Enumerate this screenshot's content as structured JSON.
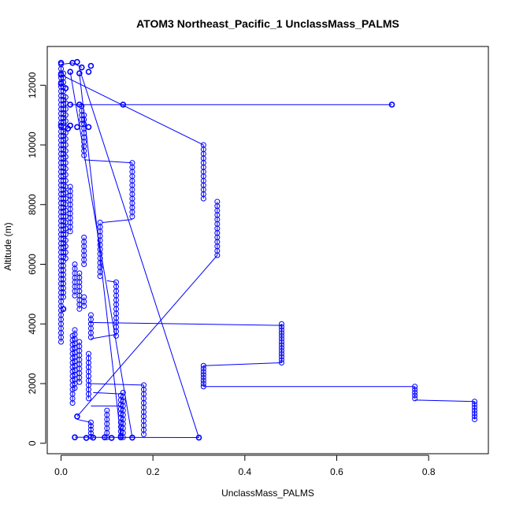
{
  "chart_data": {
    "type": "line",
    "title": "ATOM3 Northeast_Pacific_1 UnclassMass_PALMS",
    "xlabel": "UnclassMass_PALMS",
    "ylabel": "Altitude (m)",
    "xlim": [
      -0.03,
      0.93
    ],
    "ylim": [
      -350,
      13300
    ],
    "x_ticks": [
      0.0,
      0.2,
      0.4,
      0.6,
      0.8
    ],
    "x_tick_labels": [
      "0.0",
      "0.2",
      "0.4",
      "0.6",
      "0.8"
    ],
    "y_ticks": [
      0,
      2000,
      4000,
      6000,
      8000,
      10000,
      12000
    ],
    "y_tick_labels": [
      "0",
      "2000",
      "4000",
      "6000",
      "8000",
      "10000",
      "12000"
    ],
    "grid": false,
    "legend": "none",
    "series_color": "#0000ff",
    "marker": "open-circle",
    "profile_segments": [
      {
        "x": 0.0,
        "y_from": 12700,
        "y_to": 3300,
        "step": 150
      },
      {
        "x": 0.005,
        "y_from": 12400,
        "y_to": 4800,
        "step": 150
      },
      {
        "x": 0.01,
        "y_from": 11600,
        "y_to": 6200,
        "step": 200
      },
      {
        "x": 0.02,
        "y_from": 8600,
        "y_to": 7100,
        "step": 150
      },
      {
        "x": 0.03,
        "y_from": 6000,
        "y_to": 4900,
        "step": 150
      },
      {
        "x": 0.045,
        "y_from": 11300,
        "y_to": 10600,
        "step": 150
      },
      {
        "x": 0.05,
        "y_from": 11000,
        "y_to": 9600,
        "step": 150
      },
      {
        "x": 0.05,
        "y_from": 6900,
        "y_to": 5900,
        "step": 150
      },
      {
        "x": 0.04,
        "y_from": 5700,
        "y_to": 4400,
        "step": 150
      },
      {
        "x": 0.05,
        "y_from": 4900,
        "y_to": 4600,
        "step": 150
      },
      {
        "x": 0.03,
        "y_from": 3800,
        "y_to": 1800,
        "step": 150
      },
      {
        "x": 0.04,
        "y_from": 3400,
        "y_to": 2000,
        "step": 150
      },
      {
        "x": 0.025,
        "y_from": 3600,
        "y_to": 1300,
        "step": 150
      },
      {
        "x": 0.06,
        "y_from": 3000,
        "y_to": 1500,
        "step": 150
      },
      {
        "x": 0.065,
        "y_from": 4300,
        "y_to": 3500,
        "step": 150
      },
      {
        "x": 0.085,
        "y_from": 7400,
        "y_to": 5600,
        "step": 150
      },
      {
        "x": 0.12,
        "y_from": 5400,
        "y_to": 3600,
        "step": 150
      },
      {
        "x": 0.155,
        "y_from": 9400,
        "y_to": 7500,
        "step": 150
      },
      {
        "x": 0.31,
        "y_from": 10000,
        "y_to": 8200,
        "step": 150
      },
      {
        "x": 0.34,
        "y_from": 8100,
        "y_to": 6300,
        "step": 150
      },
      {
        "x": 0.48,
        "y_from": 4000,
        "y_to": 2700,
        "step": 100
      },
      {
        "x": 0.31,
        "y_from": 2600,
        "y_to": 1900,
        "step": 100
      },
      {
        "x": 0.77,
        "y_from": 1900,
        "y_to": 1450,
        "step": 100
      },
      {
        "x": 0.9,
        "y_from": 1400,
        "y_to": 750,
        "step": 100
      },
      {
        "x": 0.13,
        "y_from": 1600,
        "y_to": 200,
        "step": 150
      },
      {
        "x": 0.135,
        "y_from": 1700,
        "y_to": 200,
        "step": 150
      },
      {
        "x": 0.18,
        "y_from": 1950,
        "y_to": 200,
        "step": 150
      },
      {
        "x": 0.1,
        "y_from": 1100,
        "y_to": 200,
        "step": 150
      },
      {
        "x": 0.065,
        "y_from": 700,
        "y_to": 200,
        "step": 120
      }
    ],
    "points": [
      {
        "x": 0.0,
        "y": 12750
      },
      {
        "x": 0.025,
        "y": 12750
      },
      {
        "x": 0.035,
        "y": 12780
      },
      {
        "x": 0.045,
        "y": 12600
      },
      {
        "x": 0.065,
        "y": 12650
      },
      {
        "x": 0.06,
        "y": 12450
      },
      {
        "x": 0.04,
        "y": 12400
      },
      {
        "x": 0.02,
        "y": 12450
      },
      {
        "x": 0.0,
        "y": 12350
      },
      {
        "x": 0.02,
        "y": 11350
      },
      {
        "x": 0.04,
        "y": 11350
      },
      {
        "x": 0.135,
        "y": 11350
      },
      {
        "x": 0.72,
        "y": 11350
      },
      {
        "x": 0.0,
        "y": 10650
      },
      {
        "x": 0.02,
        "y": 10650
      },
      {
        "x": 0.035,
        "y": 10600
      },
      {
        "x": 0.06,
        "y": 10600
      },
      {
        "x": 0.015,
        "y": 10550
      },
      {
        "x": 0.0,
        "y": 12050
      },
      {
        "x": 0.005,
        "y": 4500
      },
      {
        "x": 0.01,
        "y": 11900
      },
      {
        "x": 0.03,
        "y": 200
      },
      {
        "x": 0.055,
        "y": 180
      },
      {
        "x": 0.07,
        "y": 190
      },
      {
        "x": 0.095,
        "y": 200
      },
      {
        "x": 0.11,
        "y": 180
      },
      {
        "x": 0.13,
        "y": 200
      },
      {
        "x": 0.155,
        "y": 190
      },
      {
        "x": 0.3,
        "y": 190
      },
      {
        "x": 0.035,
        "y": 900
      }
    ],
    "connectors": [
      [
        0.0,
        12700,
        0.025,
        12750
      ],
      [
        0.025,
        12750,
        0.045,
        12600
      ],
      [
        0.0,
        12350,
        0.31,
        10000
      ],
      [
        0.02,
        11350,
        0.72,
        11350
      ],
      [
        0.05,
        9500,
        0.155,
        9400
      ],
      [
        0.09,
        7400,
        0.155,
        7500
      ],
      [
        0.1,
        5450,
        0.12,
        5400
      ],
      [
        0.06,
        4050,
        0.48,
        3950
      ],
      [
        0.065,
        3500,
        0.12,
        3650
      ],
      [
        0.31,
        2600,
        0.48,
        2700
      ],
      [
        0.31,
        1900,
        0.77,
        1900
      ],
      [
        0.77,
        1450,
        0.9,
        1400
      ],
      [
        0.06,
        2000,
        0.18,
        1950
      ],
      [
        0.07,
        1700,
        0.135,
        1650
      ],
      [
        0.065,
        1250,
        0.13,
        1250
      ],
      [
        0.035,
        900,
        0.34,
        6300
      ],
      [
        0.03,
        200,
        0.3,
        190
      ],
      [
        0.04,
        12550,
        0.3,
        190
      ],
      [
        0.04,
        12400,
        0.13,
        200
      ],
      [
        0.02,
        12450,
        0.155,
        190
      ],
      [
        0.035,
        800,
        0.065,
        700
      ]
    ]
  }
}
